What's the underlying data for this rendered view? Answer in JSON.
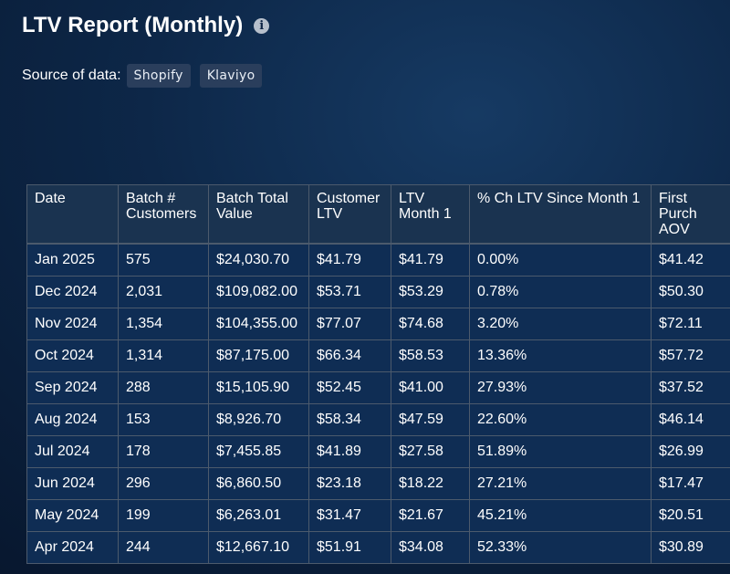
{
  "header": {
    "title": "LTV Report (Monthly)",
    "info_icon": "info-circle-icon"
  },
  "source": {
    "label": "Source of data:",
    "chips": [
      "Shopify",
      "Klaviyo"
    ]
  },
  "table": {
    "columns": [
      "Date",
      "Batch # Customers",
      "Batch Total Value",
      "Customer LTV",
      "LTV Month 1",
      "% Ch LTV Since Month 1",
      "First Purch AOV"
    ],
    "rows": [
      [
        "Jan 2025",
        "575",
        "$24,030.70",
        "$41.79",
        "$41.79",
        "0.00%",
        "$41.42"
      ],
      [
        "Dec 2024",
        "2,031",
        "$109,082.00",
        "$53.71",
        "$53.29",
        "0.78%",
        "$50.30"
      ],
      [
        "Nov 2024",
        "1,354",
        "$104,355.00",
        "$77.07",
        "$74.68",
        "3.20%",
        "$72.11"
      ],
      [
        "Oct 2024",
        "1,314",
        "$87,175.00",
        "$66.34",
        "$58.53",
        "13.36%",
        "$57.72"
      ],
      [
        "Sep 2024",
        "288",
        "$15,105.90",
        "$52.45",
        "$41.00",
        "27.93%",
        "$37.52"
      ],
      [
        "Aug 2024",
        "153",
        "$8,926.70",
        "$58.34",
        "$47.59",
        "22.60%",
        "$46.14"
      ],
      [
        "Jul 2024",
        "178",
        "$7,455.85",
        "$41.89",
        "$27.58",
        "51.89%",
        "$26.99"
      ],
      [
        "Jun 2024",
        "296",
        "$6,860.50",
        "$23.18",
        "$18.22",
        "27.21%",
        "$17.47"
      ],
      [
        "May 2024",
        "199",
        "$6,263.01",
        "$31.47",
        "$21.67",
        "45.21%",
        "$20.51"
      ],
      [
        "Apr 2024",
        "244",
        "$12,667.10",
        "$51.91",
        "$34.08",
        "52.33%",
        "$30.89"
      ]
    ]
  },
  "colors": {
    "background_top": "#163a63",
    "background_bottom": "#07152b",
    "header_row": "#1a3350",
    "body_row": "#0f2d54",
    "chip": "#2a3e5c",
    "border": "#4c5a6c"
  }
}
